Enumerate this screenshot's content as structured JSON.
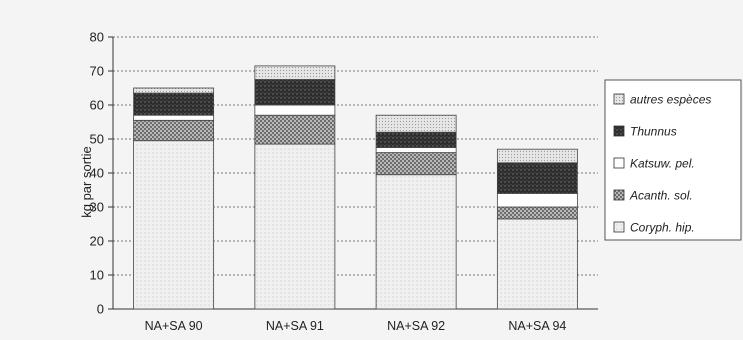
{
  "chart_data": {
    "type": "bar",
    "stacked": true,
    "title": "",
    "xlabel": "",
    "ylabel": "kg par sortie",
    "ylim": [
      0,
      80
    ],
    "yticks": [
      0,
      10,
      20,
      30,
      40,
      50,
      60,
      70,
      80
    ],
    "grid": true,
    "legend_position": "right",
    "categories": [
      "NA+SA 90",
      "NA+SA 91",
      "NA+SA 92",
      "NA+SA 94"
    ],
    "series": [
      {
        "name": "Coryph. hip.",
        "values": [
          49.5,
          48.5,
          39.5,
          26.5
        ],
        "color": "#ececec",
        "pattern": "dots-light"
      },
      {
        "name": "Acanth. sol.",
        "values": [
          6,
          8.5,
          6.5,
          3.5
        ],
        "color": "#9a9a9a",
        "pattern": "check"
      },
      {
        "name": "Katsuw. pel.",
        "values": [
          1.5,
          3,
          1.5,
          4
        ],
        "color": "#ffffff",
        "pattern": "none"
      },
      {
        "name": "Thunnus",
        "values": [
          6.5,
          7.5,
          4.5,
          9
        ],
        "color": "#3a3a3a",
        "pattern": "dark-noise"
      },
      {
        "name": "autres espèces",
        "values": [
          1.5,
          4,
          5,
          4
        ],
        "color": "#dcdcdc",
        "pattern": "dots"
      }
    ]
  }
}
